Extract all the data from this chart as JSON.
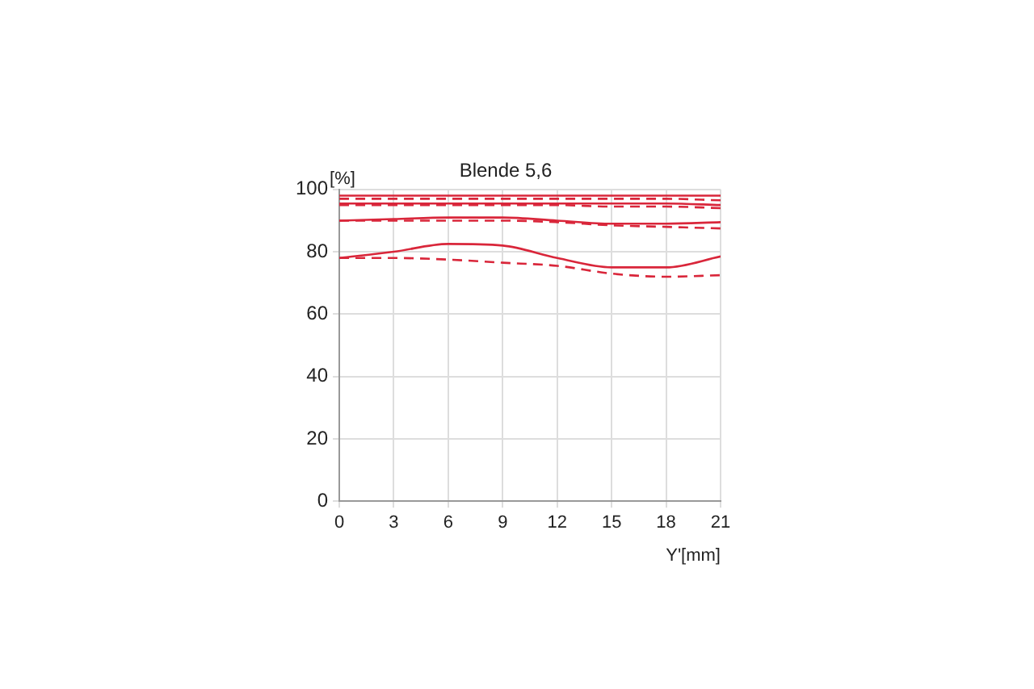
{
  "chart_data": {
    "type": "line",
    "title": "Blende 5,6",
    "xlabel": "Y'[mm]",
    "ylabel": "[%]",
    "x": [
      0,
      3,
      6,
      9,
      12,
      15,
      18,
      21
    ],
    "xlim": [
      0,
      21
    ],
    "xticks": [
      0,
      3,
      6,
      9,
      12,
      15,
      18,
      21
    ],
    "ylim": [
      0,
      100
    ],
    "yticks": [
      0,
      20,
      40,
      60,
      80,
      100
    ],
    "grid": true,
    "legend": false,
    "marker": "none",
    "series": [
      {
        "color": "#d9263a",
        "line_style": "solid",
        "values": [
          98,
          98,
          98,
          98,
          98,
          98,
          98,
          98
        ]
      },
      {
        "color": "#d9263a",
        "line_style": "dashed",
        "values": [
          97,
          97,
          97,
          97,
          97,
          97,
          97,
          96.5
        ]
      },
      {
        "color": "#d9263a",
        "line_style": "solid",
        "values": [
          95.5,
          95.5,
          95.5,
          95.5,
          95.5,
          95.5,
          95.5,
          95
        ]
      },
      {
        "color": "#d9263a",
        "line_style": "dashed",
        "values": [
          95,
          95,
          95,
          95,
          95,
          94.5,
          94.5,
          94
        ]
      },
      {
        "color": "#d9263a",
        "line_style": "solid",
        "values": [
          90,
          90.5,
          91,
          91,
          90,
          89,
          89,
          89.5
        ]
      },
      {
        "color": "#d9263a",
        "line_style": "dashed",
        "values": [
          90,
          90,
          90,
          90,
          89.5,
          88.5,
          88,
          87.5
        ]
      },
      {
        "color": "#d9263a",
        "line_style": "solid",
        "values": [
          78,
          80,
          82.5,
          82,
          78,
          75,
          75,
          78.5
        ]
      },
      {
        "color": "#d9263a",
        "line_style": "dashed",
        "values": [
          78,
          78,
          77.5,
          76.5,
          75.5,
          73,
          72,
          72.5
        ]
      }
    ]
  }
}
